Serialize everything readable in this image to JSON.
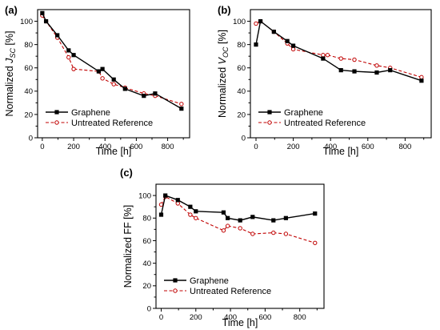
{
  "chart_data": [
    {
      "panel": "(a)",
      "type": "line",
      "xlabel": "Time [h]",
      "ylabel_prefix": "Normalized ",
      "ylabel_symbol": "J",
      "ylabel_sub": "SC",
      "ylabel_suffix": " [%]",
      "xlim": [
        -30,
        940
      ],
      "ylim": [
        0,
        110
      ],
      "xticks": [
        0,
        200,
        400,
        600,
        800
      ],
      "yticks": [
        0,
        20,
        40,
        60,
        80,
        100
      ],
      "series": [
        {
          "name": "Graphene",
          "style": "solid",
          "marker": "square",
          "color": "#000000",
          "x": [
            0,
            24,
            96,
            168,
            200,
            360,
            384,
            456,
            528,
            648,
            720,
            888
          ],
          "y": [
            107,
            100,
            88,
            75,
            71,
            57,
            59,
            50,
            42,
            36,
            38,
            25
          ]
        },
        {
          "name": "Untreated Reference",
          "style": "dashed",
          "marker": "circle",
          "color": "#c00000",
          "x": [
            0,
            24,
            96,
            168,
            200,
            360,
            384,
            456,
            528,
            648,
            720,
            888
          ],
          "y": [
            105,
            100,
            86,
            69,
            59,
            57,
            51,
            46,
            43,
            38,
            36,
            29
          ]
        }
      ]
    },
    {
      "panel": "(b)",
      "type": "line",
      "xlabel": "Time [h]",
      "ylabel_prefix": "Normalized ",
      "ylabel_symbol": "V",
      "ylabel_sub": "OC",
      "ylabel_suffix": " [%]",
      "xlim": [
        -30,
        940
      ],
      "ylim": [
        0,
        110
      ],
      "xticks": [
        0,
        200,
        400,
        600,
        800
      ],
      "yticks": [
        0,
        20,
        40,
        60,
        80,
        100
      ],
      "series": [
        {
          "name": "Graphene",
          "style": "solid",
          "marker": "square",
          "color": "#000000",
          "x": [
            0,
            24,
            96,
            168,
            200,
            360,
            456,
            528,
            648,
            720,
            888
          ],
          "y": [
            80,
            100,
            91,
            83,
            79,
            68,
            58,
            57,
            56,
            58,
            49
          ]
        },
        {
          "name": "Untreated Reference",
          "style": "dashed",
          "marker": "circle",
          "color": "#c00000",
          "x": [
            0,
            24,
            96,
            168,
            200,
            360,
            384,
            456,
            528,
            648,
            720,
            888
          ],
          "y": [
            98,
            100,
            91,
            81,
            76,
            71,
            71,
            68,
            67,
            62,
            60,
            52
          ]
        }
      ]
    },
    {
      "panel": "(c)",
      "type": "line",
      "xlabel": "Time [h]",
      "ylabel_prefix": "Normalized FF [%]",
      "ylabel_symbol": "",
      "ylabel_sub": "",
      "ylabel_suffix": "",
      "xlim": [
        -30,
        940
      ],
      "ylim": [
        0,
        110
      ],
      "xticks": [
        0,
        200,
        400,
        600,
        800
      ],
      "yticks": [
        0,
        20,
        40,
        60,
        80,
        100
      ],
      "series": [
        {
          "name": "Graphene",
          "style": "solid",
          "marker": "square",
          "color": "#000000",
          "x": [
            0,
            24,
            96,
            168,
            200,
            360,
            384,
            456,
            528,
            648,
            720,
            888
          ],
          "y": [
            83,
            100,
            96,
            90,
            86,
            85,
            80,
            78,
            81,
            78,
            80,
            84
          ]
        },
        {
          "name": "Untreated Reference",
          "style": "dashed",
          "marker": "circle",
          "color": "#c00000",
          "x": [
            0,
            24,
            96,
            168,
            200,
            360,
            384,
            456,
            528,
            648,
            720,
            888
          ],
          "y": [
            92,
            99,
            93,
            83,
            80,
            69,
            73,
            71,
            66,
            67,
            66,
            58
          ]
        }
      ]
    }
  ]
}
